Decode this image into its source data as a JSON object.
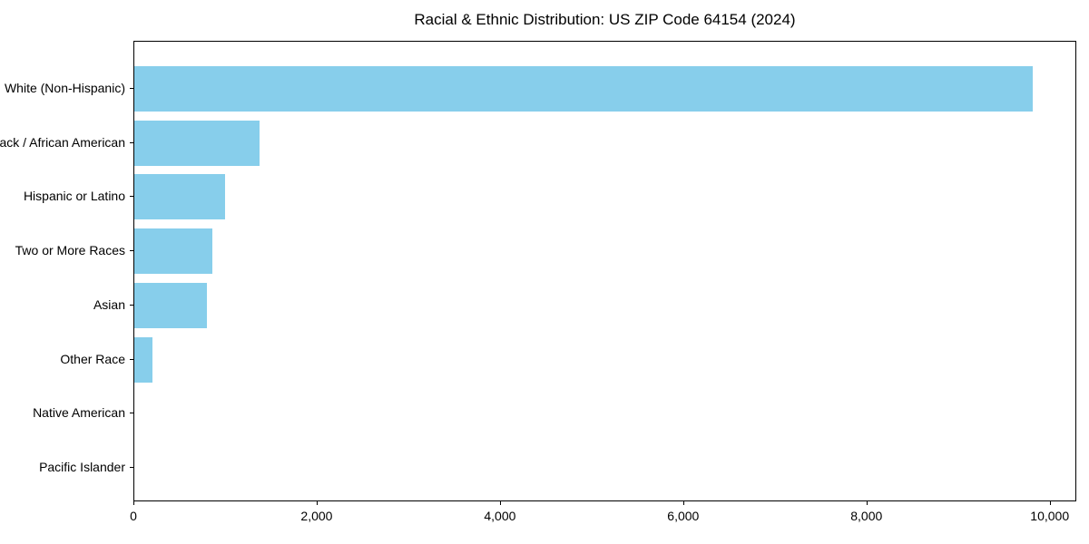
{
  "figure": {
    "background": "#ffffff"
  },
  "chart_data": {
    "type": "bar",
    "orientation": "horizontal",
    "title": "Racial & Ethnic Distribution: US ZIP Code 64154 (2024)",
    "xlabel": "",
    "ylabel": "",
    "categories": [
      "White (Non-Hispanic)",
      "Black / African American",
      "Hispanic or Latino",
      "Two or More Races",
      "Asian",
      "Other Race",
      "Native American",
      "Pacific Islander"
    ],
    "values": [
      9800,
      1370,
      990,
      850,
      790,
      200,
      0,
      0
    ],
    "xlim": [
      0,
      10290
    ],
    "x_ticks": [
      0,
      2000,
      4000,
      6000,
      8000,
      10000
    ],
    "x_tick_labels": [
      "0",
      "2,000",
      "4,000",
      "6,000",
      "8,000",
      "10,000"
    ],
    "grid": false,
    "legend": null,
    "bar_color": "#87CEEB",
    "axis_color": "#000000",
    "text_color": "#000000"
  }
}
